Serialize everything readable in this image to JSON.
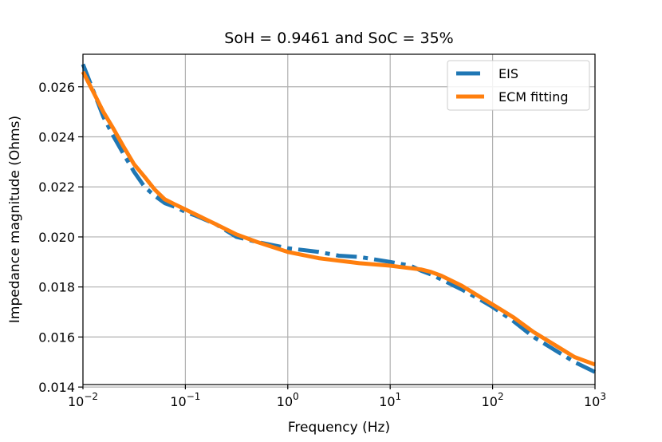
{
  "chart_data": {
    "type": "line",
    "title": "SoH = 0.9461 and SoC = 35%",
    "xlabel": "Frequency (Hz)",
    "ylabel": "Impedance magnitude (Ohms)",
    "xscale": "log",
    "xlim": [
      0.01,
      1000
    ],
    "ylim": [
      0.0141,
      0.0273
    ],
    "grid": true,
    "legend_position": "top-right",
    "x_ticks": [
      {
        "value": 0.01,
        "base": "10",
        "exp": "−2"
      },
      {
        "value": 0.1,
        "base": "10",
        "exp": "−1"
      },
      {
        "value": 1,
        "base": "10",
        "exp": "0"
      },
      {
        "value": 10,
        "base": "10",
        "exp": "1"
      },
      {
        "value": 100,
        "base": "10",
        "exp": "2"
      },
      {
        "value": 1000,
        "base": "10",
        "exp": "3"
      }
    ],
    "y_ticks": [
      {
        "value": 0.014,
        "label": "0.014"
      },
      {
        "value": 0.016,
        "label": "0.016"
      },
      {
        "value": 0.018,
        "label": "0.018"
      },
      {
        "value": 0.02,
        "label": "0.020"
      },
      {
        "value": 0.022,
        "label": "0.022"
      },
      {
        "value": 0.024,
        "label": "0.024"
      },
      {
        "value": 0.026,
        "label": "0.026"
      }
    ],
    "series": [
      {
        "name": "EIS",
        "color": "#1f77b4",
        "style": "dashdot",
        "x": [
          0.01,
          0.0126,
          0.0158,
          0.02,
          0.025,
          0.0316,
          0.04,
          0.05,
          0.063,
          0.079,
          0.1,
          0.126,
          0.2,
          0.316,
          0.5,
          1,
          2,
          3.16,
          5,
          10,
          15.8,
          20,
          25,
          31.6,
          50,
          79,
          100,
          158,
          251,
          398,
          631,
          1000
        ],
        "y": [
          0.0269,
          0.02585,
          0.0248,
          0.024,
          0.0233,
          0.0226,
          0.022,
          0.02165,
          0.02135,
          0.0212,
          0.021,
          0.02085,
          0.0205,
          0.02,
          0.0198,
          0.01955,
          0.0194,
          0.01925,
          0.0192,
          0.019,
          0.01885,
          0.01865,
          0.0185,
          0.0183,
          0.0179,
          0.01745,
          0.0172,
          0.01665,
          0.016,
          0.0155,
          0.015,
          0.0146
        ]
      },
      {
        "name": "ECM fitting",
        "color": "#ff7f0e",
        "style": "solid",
        "x": [
          0.01,
          0.0126,
          0.0158,
          0.02,
          0.025,
          0.0316,
          0.04,
          0.05,
          0.063,
          0.079,
          0.1,
          0.126,
          0.2,
          0.316,
          0.5,
          1,
          2,
          3.16,
          5,
          10,
          15.8,
          20,
          25,
          31.6,
          50,
          79,
          100,
          158,
          251,
          398,
          631,
          1000
        ],
        "y": [
          0.0266,
          0.0258,
          0.025,
          0.0243,
          0.0236,
          0.0229,
          0.0224,
          0.0219,
          0.0215,
          0.0213,
          0.0211,
          0.0209,
          0.0205,
          0.0201,
          0.0198,
          0.0194,
          0.01915,
          0.01905,
          0.01895,
          0.01885,
          0.01875,
          0.0187,
          0.0186,
          0.01845,
          0.01805,
          0.01755,
          0.0173,
          0.0168,
          0.0162,
          0.0157,
          0.0152,
          0.0149
        ]
      }
    ]
  }
}
